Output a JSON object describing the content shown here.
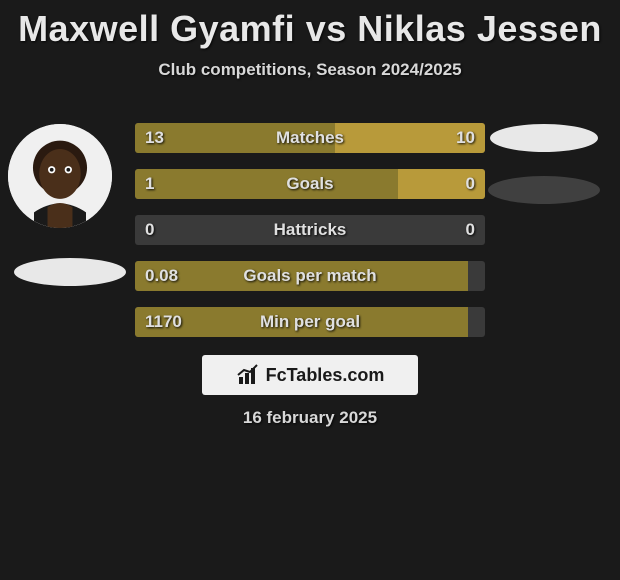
{
  "title": {
    "player1": "Maxwell Gyamfi",
    "vs": "vs",
    "player2": "Niklas Jessen"
  },
  "subtitle": "Club competitions, Season 2024/2025",
  "brand": "FcTables.com",
  "date": "16 february 2025",
  "colors": {
    "bg": "#1a1a1a",
    "bar_track": "#3a3a3a",
    "bar_left": "#8a7a2e",
    "bar_right": "#b89a3a",
    "text": "#e0e0e0",
    "ellipse_light": "#e8e8e8",
    "ellipse_dark": "#404040",
    "logo_bg": "#f0f0f0"
  },
  "stats": [
    {
      "label": "Matches",
      "left_val": "13",
      "right_val": "10",
      "left_pct": 57,
      "right_pct": 43
    },
    {
      "label": "Goals",
      "left_val": "1",
      "right_val": "0",
      "left_pct": 75,
      "right_pct": 25
    },
    {
      "label": "Hattricks",
      "left_val": "0",
      "right_val": "0",
      "left_pct": 0,
      "right_pct": 0
    },
    {
      "label": "Goals per match",
      "left_val": "0.08",
      "right_val": "",
      "left_pct": 95,
      "right_pct": 0
    },
    {
      "label": "Min per goal",
      "left_val": "1170",
      "right_val": "",
      "left_pct": 95,
      "right_pct": 0
    }
  ]
}
